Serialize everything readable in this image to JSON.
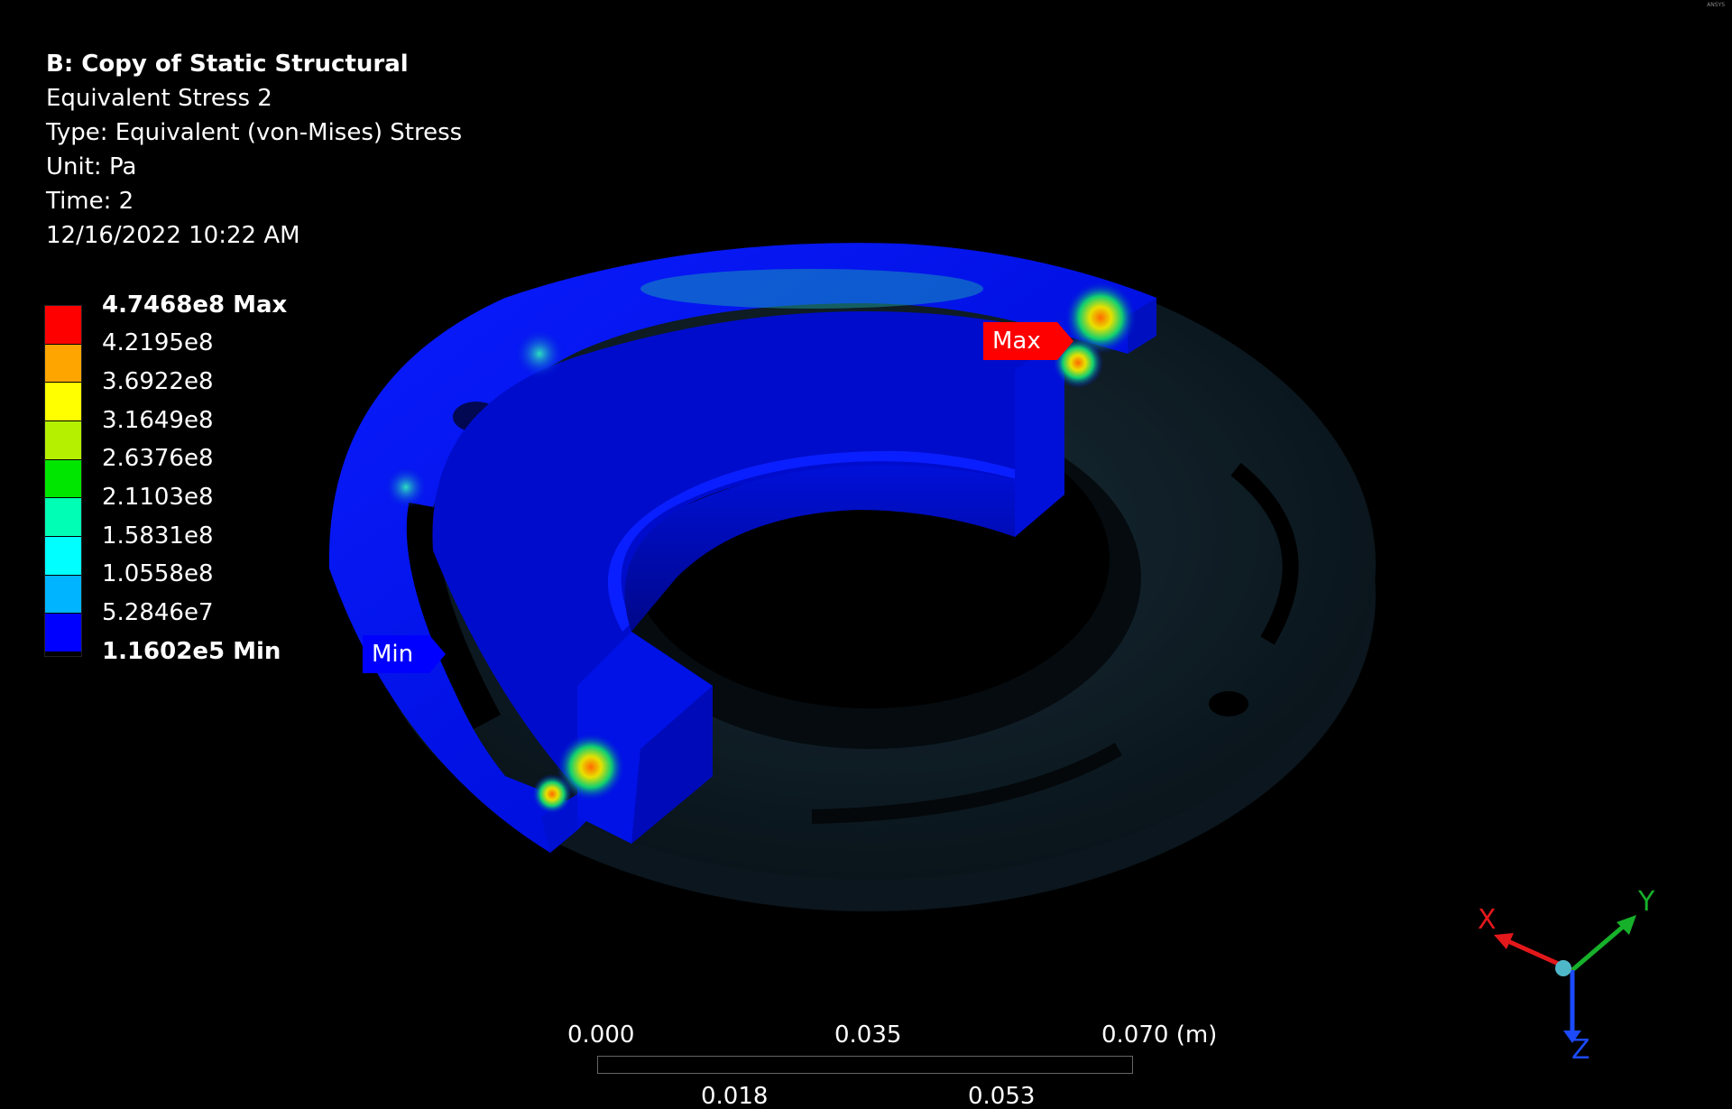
{
  "info": {
    "title": "B: Copy of Static Structural",
    "result_name": "Equivalent Stress 2",
    "type": "Type: Equivalent (von-Mises) Stress",
    "unit": "Unit: Pa",
    "time": "Time: 2",
    "timestamp": "12/16/2022 10:22 AM"
  },
  "legend": {
    "labels": [
      "4.7468e8 Max",
      "4.2195e8",
      "3.6922e8",
      "3.1649e8",
      "2.6376e8",
      "2.1103e8",
      "1.5831e8",
      "1.0558e8",
      "5.2846e7",
      "1.1602e5 Min"
    ],
    "colors": [
      "#ff0000",
      "#ffa500",
      "#ffff00",
      "#b4f000",
      "#00e600",
      "#00ffb4",
      "#00ffff",
      "#00b4ff",
      "#0000ff"
    ]
  },
  "probes": {
    "max_label": "Max",
    "min_label": "Min",
    "max_color": "#ff0000",
    "min_color": "#0000ff"
  },
  "scale_bar": {
    "top_labels": [
      "0.000",
      "0.035",
      "0.070 (m)"
    ],
    "bottom_labels": [
      "0.018",
      "0.053"
    ]
  },
  "triad": {
    "x_label": "X",
    "y_label": "Y",
    "z_label": "Z",
    "x_color": "#e3181b",
    "y_color": "#17b02b",
    "z_color": "#1c4aff"
  },
  "corner_logo": "ANSYS"
}
